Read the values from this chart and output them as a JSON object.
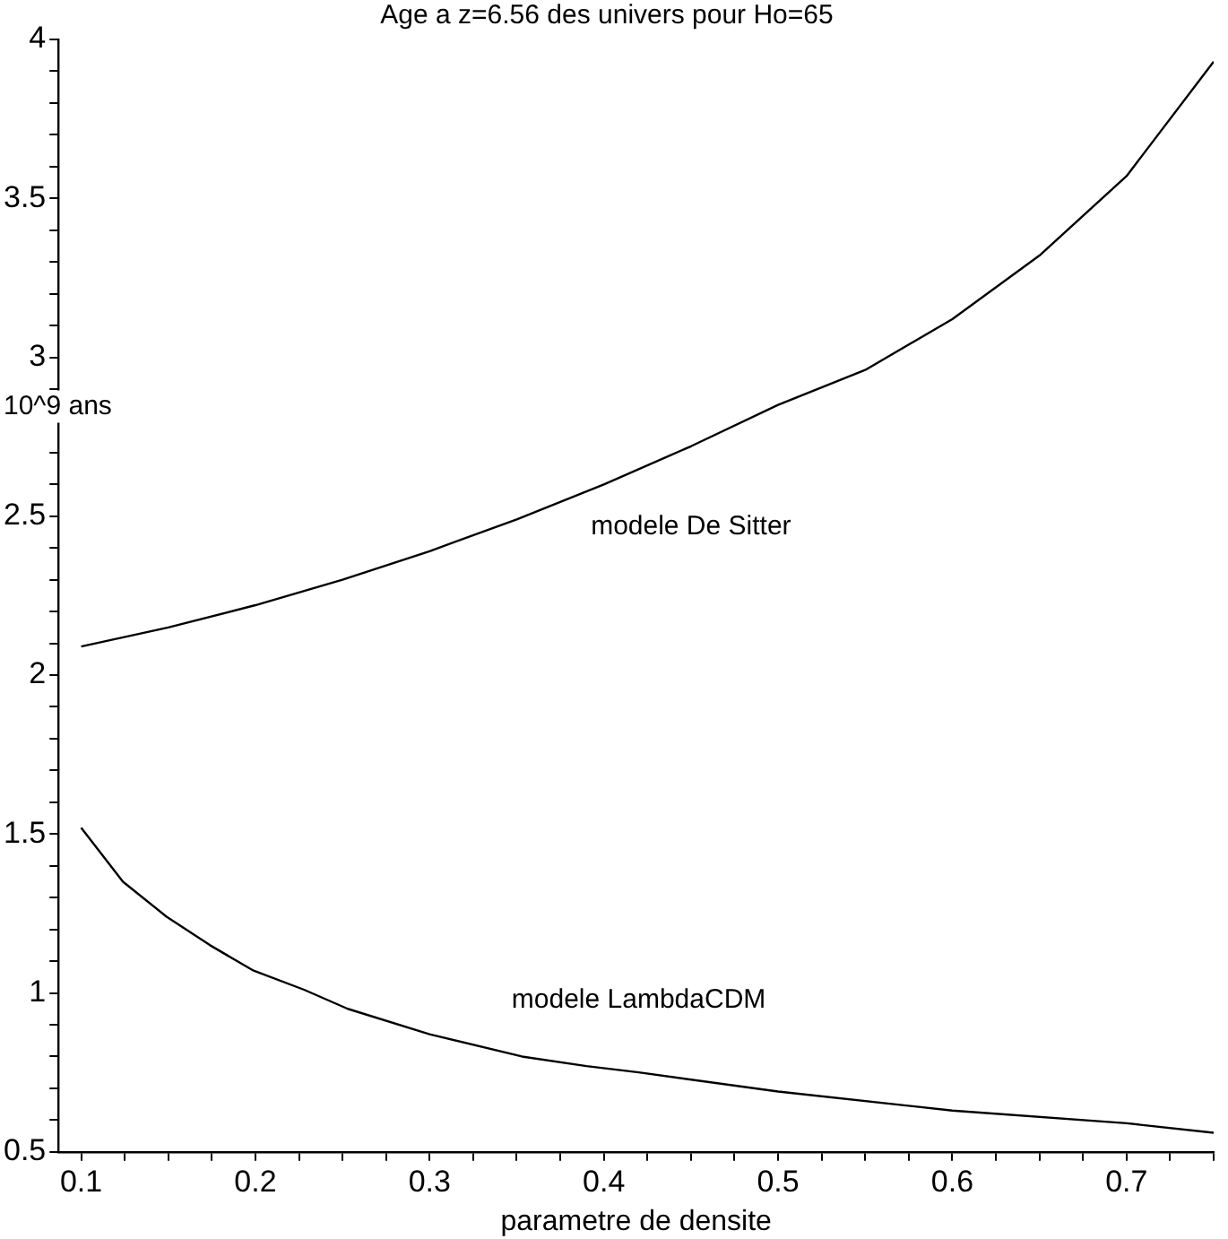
{
  "chart_data": {
    "type": "line",
    "title": "Age a z=6.56 des univers pour Ho=65",
    "xlabel": "parametre de densite",
    "ylabel": "10^9 ans",
    "xlim": [
      0.087,
      0.75
    ],
    "xticks": [
      0.1,
      {
        "value": 0.125,
        "label": null
      },
      {
        "value": 0.15,
        "label": null
      },
      {
        "value": 0.175,
        "label": null
      },
      0.2,
      {
        "value": 0.225,
        "label": null
      },
      {
        "value": 0.25,
        "label": null
      },
      {
        "value": 0.275,
        "label": null
      },
      0.3,
      {
        "value": 0.325,
        "label": null
      },
      {
        "value": 0.35,
        "label": null
      },
      {
        "value": 0.375,
        "label": null
      },
      0.4,
      {
        "value": 0.425,
        "label": null
      },
      {
        "value": 0.45,
        "label": null
      },
      {
        "value": 0.475,
        "label": null
      },
      0.5,
      {
        "value": 0.525,
        "label": null
      },
      {
        "value": 0.55,
        "label": null
      },
      {
        "value": 0.575,
        "label": null
      },
      0.6,
      {
        "value": 0.625,
        "label": null
      },
      {
        "value": 0.65,
        "label": null
      },
      {
        "value": 0.675,
        "label": null
      },
      0.7,
      {
        "value": 0.725,
        "label": null
      },
      {
        "value": 0.75,
        "label": null
      }
    ],
    "ylim": [
      0.5,
      4
    ],
    "yticks": [
      0.5,
      {
        "value": 0.6,
        "label": null
      },
      {
        "value": 0.7,
        "label": null
      },
      {
        "value": 0.8,
        "label": null
      },
      {
        "value": 0.9,
        "label": null
      },
      1,
      {
        "value": 1.1,
        "label": null
      },
      {
        "value": 1.2,
        "label": null
      },
      {
        "value": 1.3,
        "label": null
      },
      {
        "value": 1.4,
        "label": null
      },
      1.5,
      {
        "value": 1.6,
        "label": null
      },
      {
        "value": 1.7,
        "label": null
      },
      {
        "value": 1.8,
        "label": null
      },
      {
        "value": 1.9,
        "label": null
      },
      2,
      {
        "value": 2.1,
        "label": null
      },
      {
        "value": 2.2,
        "label": null
      },
      {
        "value": 2.3,
        "label": null
      },
      {
        "value": 2.4,
        "label": null
      },
      2.5,
      {
        "value": 2.6,
        "label": null
      },
      {
        "value": 2.7,
        "label": null
      },
      {
        "value": 2.8,
        "label": null
      },
      {
        "value": 2.9,
        "label": null
      },
      3,
      {
        "value": 3.1,
        "label": null
      },
      {
        "value": 3.2,
        "label": null
      },
      {
        "value": 3.3,
        "label": null
      },
      {
        "value": 3.4,
        "label": null
      },
      3.5,
      {
        "value": 3.6,
        "label": null
      },
      {
        "value": 3.7,
        "label": null
      },
      {
        "value": 3.8,
        "label": null
      },
      {
        "value": 3.9,
        "label": null
      },
      4
    ],
    "grid": false,
    "legend": false,
    "marker": "none",
    "line_style": "solid",
    "series": [
      {
        "name": "modele De Sitter",
        "color": "#000000",
        "x": [
          0.1,
          0.15,
          0.2,
          0.25,
          0.3,
          0.35,
          0.4,
          0.45,
          0.5,
          0.55,
          0.6,
          0.65,
          0.7,
          0.75
        ],
        "values": [
          2.09,
          2.15,
          2.22,
          2.3,
          2.39,
          2.49,
          2.6,
          2.72,
          2.85,
          2.96,
          3.12,
          3.32,
          3.57,
          3.93
        ]
      },
      {
        "name": "modele LambdaCDM",
        "color": "#000000",
        "x": [
          0.1,
          0.124,
          0.149,
          0.174,
          0.199,
          0.228,
          0.253,
          0.3,
          0.353,
          0.39,
          0.42,
          0.5,
          0.6,
          0.7,
          0.75
        ],
        "values": [
          1.52,
          1.35,
          1.24,
          1.15,
          1.07,
          1.01,
          0.95,
          0.87,
          0.8,
          0.77,
          0.75,
          0.69,
          0.63,
          0.59,
          0.56
        ]
      }
    ]
  }
}
